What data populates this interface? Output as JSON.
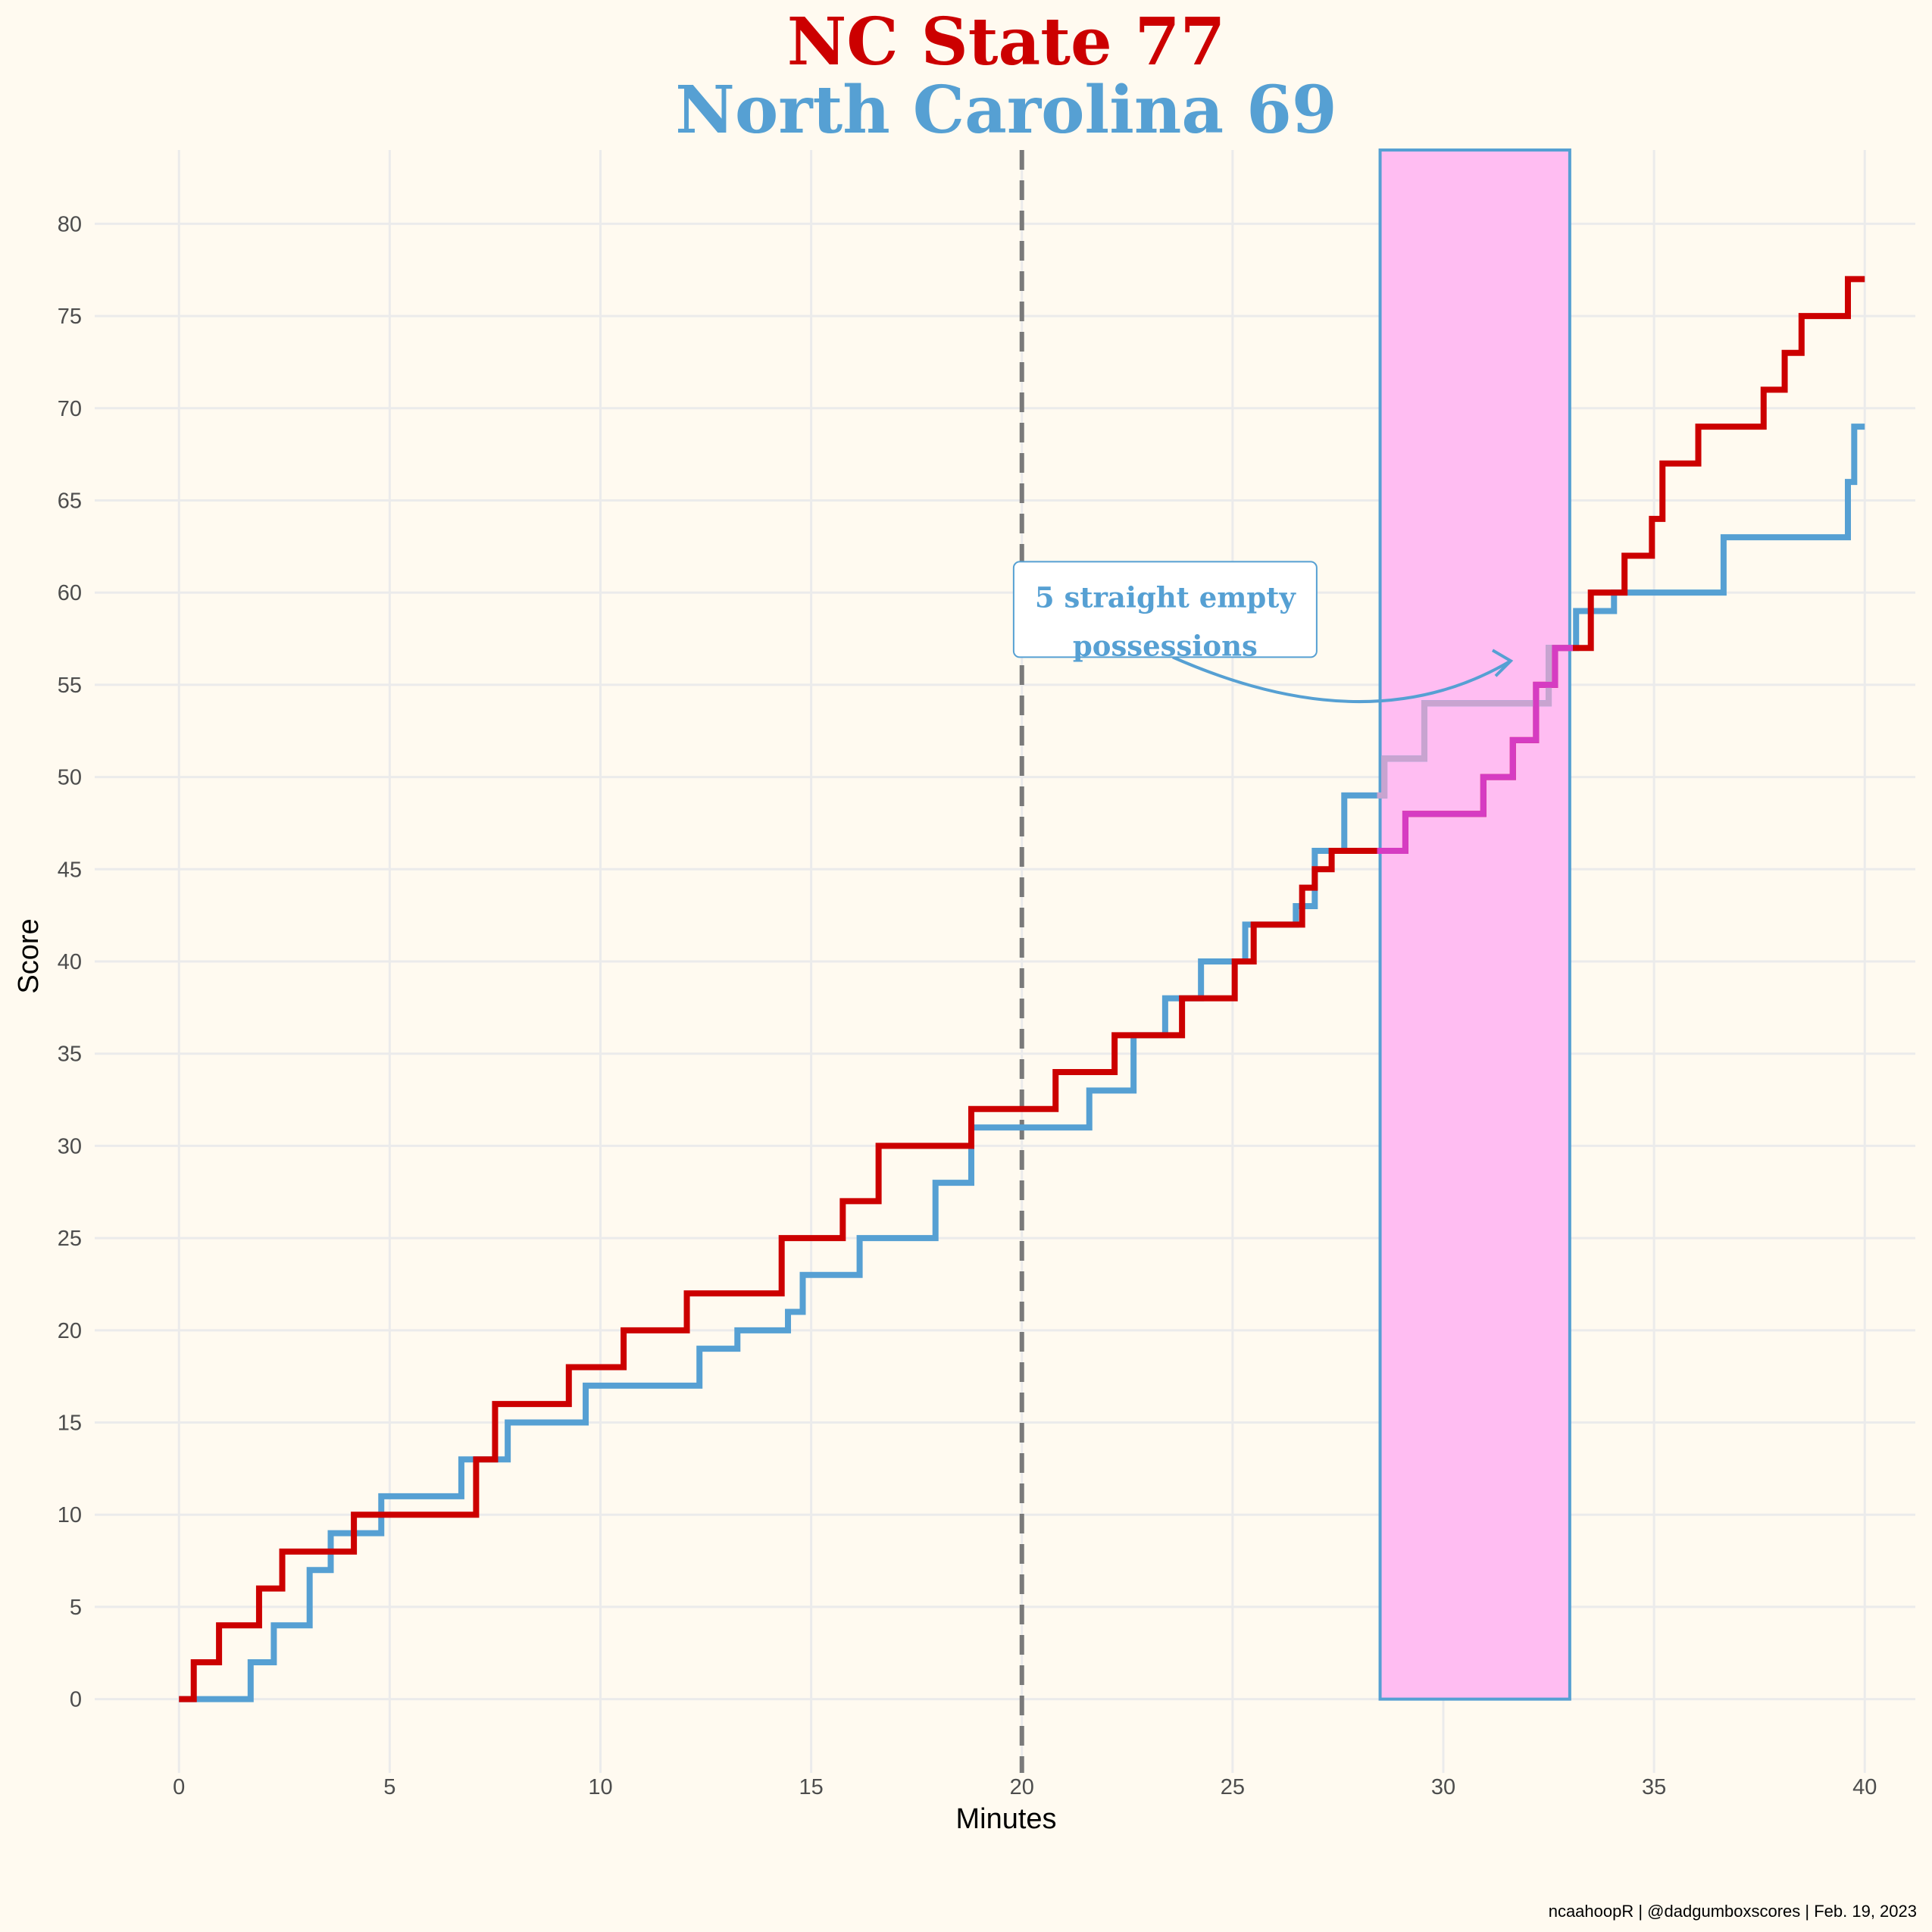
{
  "chart_data": {
    "type": "line",
    "title": "NC State 77",
    "subtitle": "North Carolina 69",
    "xlabel": "Minutes",
    "ylabel": "Score",
    "xlim": [
      -2,
      41.2
    ],
    "ylim": [
      -4,
      84
    ],
    "x_ticks": [
      0,
      5,
      10,
      15,
      20,
      25,
      30,
      35,
      40
    ],
    "y_ticks": [
      0,
      5,
      10,
      15,
      20,
      25,
      30,
      35,
      40,
      45,
      50,
      55,
      60,
      65,
      70,
      75,
      80
    ],
    "grid": true,
    "halftime_line_x": 20,
    "highlight_region": {
      "x_start": 28.5,
      "x_end": 33.0,
      "color": "#ffbdf2",
      "border": "#56a0d3"
    },
    "annotation": {
      "line1": "5 straight empty",
      "line2": "possessions",
      "text_at": [
        23.4,
        58.8
      ],
      "arrow_to": [
        31.6,
        56.3
      ]
    },
    "series": [
      {
        "name": "NC State",
        "color": "#cc0000",
        "highlight_color": "#d63cc2",
        "x": [
          0,
          0.35,
          0.95,
          1.9,
          2.45,
          4.15,
          7.05,
          7.5,
          9.25,
          10.55,
          12.05,
          14.3,
          15.75,
          16.6,
          18.8,
          20.8,
          22.2,
          23.8,
          25.05,
          25.5,
          26.65,
          26.95,
          27.35,
          29.1,
          30.95,
          31.65,
          32.2,
          32.65,
          33.5,
          34.3,
          34.95,
          35.2,
          36.05,
          37.6,
          38.1,
          38.5,
          39.6,
          40
        ],
        "y": [
          0,
          2,
          4,
          6,
          8,
          10,
          13,
          16,
          18,
          20,
          22,
          25,
          27,
          30,
          32,
          34,
          36,
          38,
          40,
          42,
          44,
          45,
          46,
          48,
          50,
          52,
          55,
          57,
          60,
          62,
          64,
          67,
          69,
          71,
          73,
          75,
          77,
          77
        ]
      },
      {
        "name": "North Carolina",
        "color": "#56a0d3",
        "highlight_color": "#c8a4d0",
        "x": [
          0,
          1.7,
          2.25,
          3.1,
          3.6,
          4.8,
          6.7,
          7.8,
          9.65,
          12.35,
          13.25,
          14.45,
          14.8,
          16.15,
          17.95,
          18.8,
          21.6,
          22.65,
          23.4,
          24.25,
          25.3,
          26.5,
          26.95,
          27.65,
          28.6,
          29.55,
          32.5,
          33.15,
          34.05,
          36.65,
          39.6,
          39.75,
          40
        ],
        "y": [
          0,
          2,
          4,
          7,
          9,
          11,
          13,
          15,
          17,
          19,
          20,
          21,
          23,
          25,
          28,
          31,
          33,
          36,
          38,
          40,
          42,
          43,
          46,
          49,
          51,
          54,
          57,
          59,
          60,
          63,
          66,
          69,
          69
        ]
      }
    ],
    "caption": "ncaahoopR | @dadgumboxscores | Feb. 19, 2023"
  }
}
